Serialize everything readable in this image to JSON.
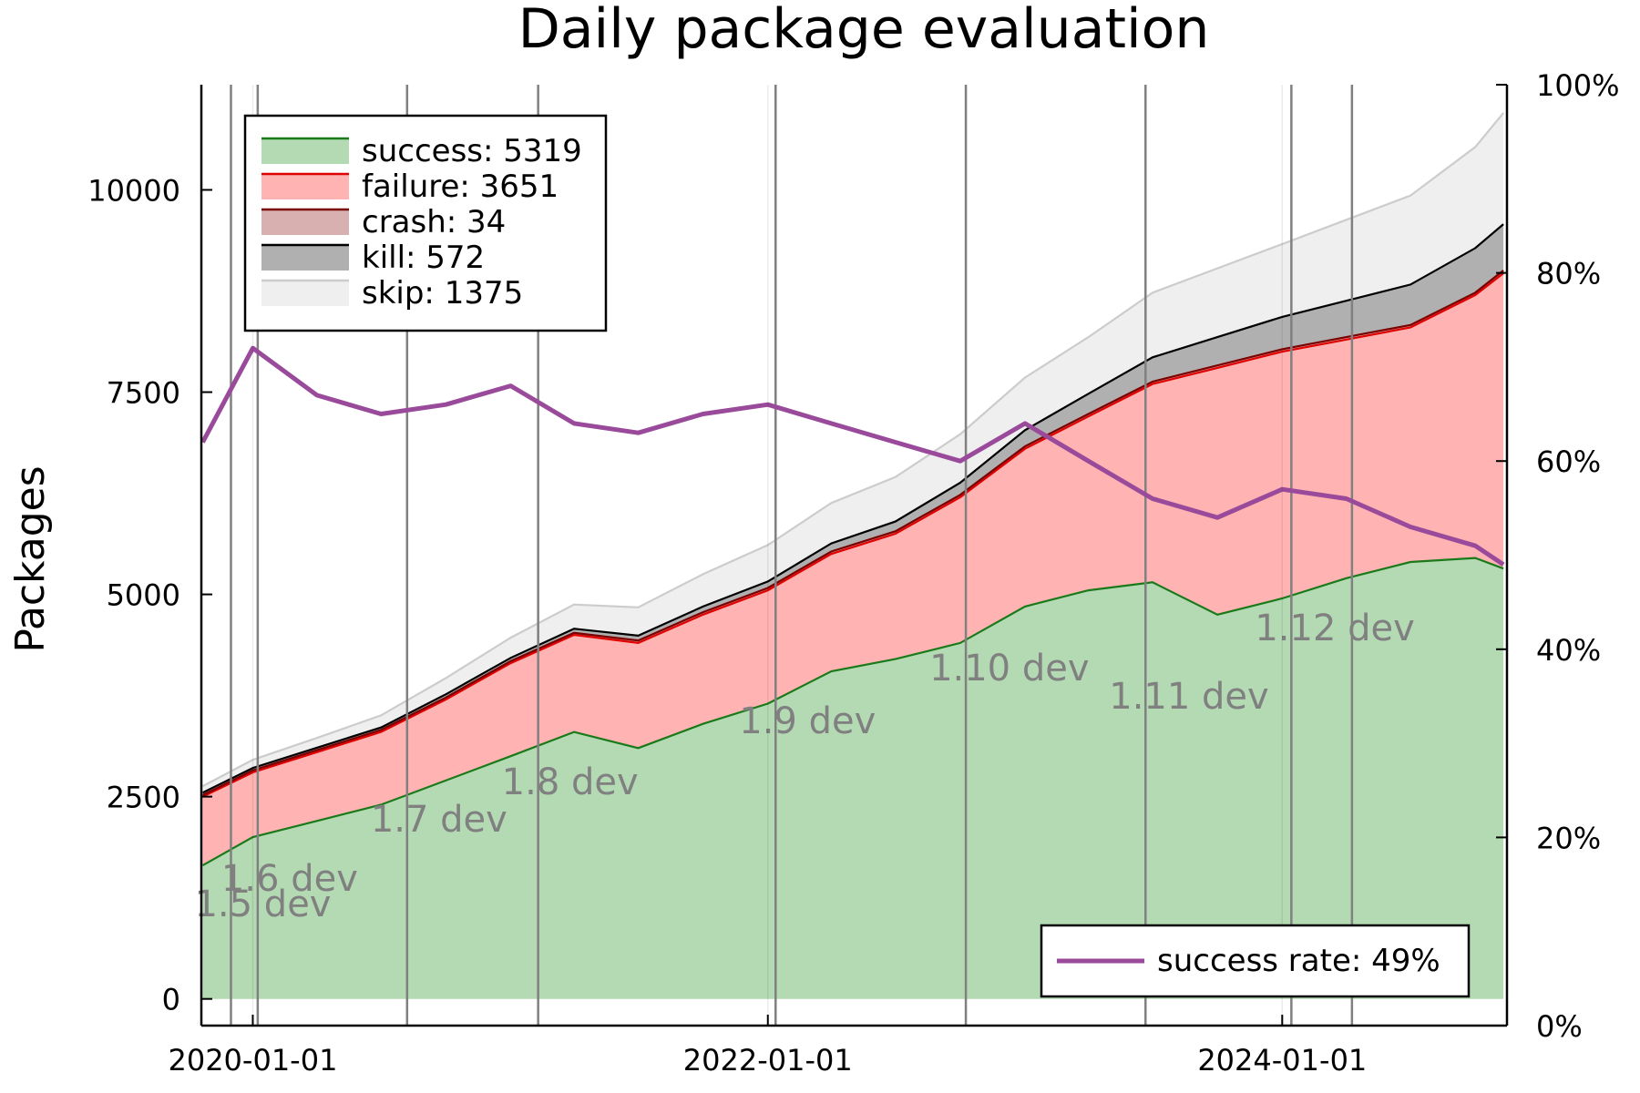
{
  "chart_data": {
    "type": "area",
    "title": "Daily package evaluation",
    "ylabel": "Packages",
    "xlabel": "",
    "x_range": [
      "2019-10-20",
      "2024-11-15"
    ],
    "ylim": [
      -330,
      11300
    ],
    "y2lim": [
      0,
      100
    ],
    "x_ticks": [
      "2020-01-01",
      "2022-01-01",
      "2024-01-01"
    ],
    "y_ticks": [
      0,
      2500,
      5000,
      7500,
      10000
    ],
    "y_tick_labels": [
      "0",
      "2500",
      "5000",
      "7500",
      "10000"
    ],
    "y2_ticks": [
      0,
      20,
      40,
      60,
      80,
      100
    ],
    "y2_tick_labels": [
      "0%",
      "20%",
      "40%",
      "60%",
      "80%",
      "100%"
    ],
    "grid": false,
    "dates": [
      "2019-10-22",
      "2020-01-01",
      "2020-04-01",
      "2020-07-01",
      "2020-10-01",
      "2021-01-01",
      "2021-04-01",
      "2021-07-01",
      "2021-10-01",
      "2022-01-01",
      "2022-04-01",
      "2022-07-01",
      "2022-10-01",
      "2023-01-01",
      "2023-04-01",
      "2023-07-01",
      "2023-10-01",
      "2024-01-01",
      "2024-04-01",
      "2024-07-01",
      "2024-10-01",
      "2024-11-10"
    ],
    "series": [
      {
        "name": "success: 5319",
        "key": "success",
        "color": "#1a7a1a",
        "fill": "#b3dab3",
        "values": [
          1650,
          2000,
          2200,
          2400,
          2700,
          3000,
          3300,
          3100,
          3400,
          3650,
          4050,
          4200,
          4400,
          4850,
          5050,
          5150,
          4750,
          4950,
          5200,
          5400,
          5450,
          5319
        ]
      },
      {
        "name": "failure: 3651",
        "key": "failure",
        "color": "#e00000",
        "fill": "#ffb3b3",
        "values": [
          850,
          800,
          850,
          900,
          1000,
          1150,
          1200,
          1300,
          1350,
          1400,
          1450,
          1550,
          1800,
          1950,
          2150,
          2450,
          3050,
          3050,
          2950,
          2900,
          3250,
          3651
        ]
      },
      {
        "name": "crash: 34",
        "key": "crash",
        "color": "#7a0000",
        "fill": "#d9b0b0",
        "values": [
          20,
          25,
          25,
          25,
          25,
          25,
          25,
          30,
          30,
          30,
          30,
          30,
          30,
          30,
          30,
          30,
          30,
          30,
          30,
          30,
          30,
          34
        ]
      },
      {
        "name": "kill: 572",
        "key": "kill",
        "color": "#000000",
        "fill": "#b0b0b0",
        "values": [
          30,
          30,
          30,
          30,
          40,
          40,
          50,
          60,
          70,
          80,
          100,
          120,
          150,
          200,
          250,
          300,
          350,
          400,
          450,
          500,
          550,
          572
        ]
      },
      {
        "name": "skip: 1375",
        "key": "skip",
        "color": "#cccccc",
        "fill": "#efefef",
        "values": [
          80,
          100,
          120,
          150,
          200,
          250,
          300,
          350,
          400,
          450,
          500,
          550,
          600,
          650,
          700,
          800,
          850,
          900,
          1000,
          1100,
          1250,
          1375
        ]
      }
    ],
    "success_rate": {
      "name": "success rate: 49%",
      "color": "#9a4a9a",
      "axis": "right",
      "values": [
        62,
        72,
        67,
        65,
        66,
        68,
        64,
        63,
        65,
        66,
        64,
        62,
        60,
        64,
        60,
        56,
        54,
        57,
        56,
        53,
        51,
        49
      ]
    },
    "release_markers": [
      {
        "date": "2019-12-01",
        "label": "1.5 dev"
      },
      {
        "date": "2020-01-08",
        "label": "1.6 dev"
      },
      {
        "date": "2020-08-07",
        "label": "1.7 dev"
      },
      {
        "date": "2021-02-09",
        "label": "1.8 dev"
      },
      {
        "date": "2022-01-12",
        "label": "1.9 dev"
      },
      {
        "date": "2022-10-09",
        "label": "1.10 dev"
      },
      {
        "date": "2023-06-21",
        "label": "1.11 dev"
      },
      {
        "date": "2024-01-14",
        "label": "1.12 dev"
      },
      {
        "date": "2024-04-09",
        "label": ""
      }
    ],
    "legend": {
      "placement": "top-left"
    },
    "legend2": {
      "placement": "bottom-right"
    }
  }
}
